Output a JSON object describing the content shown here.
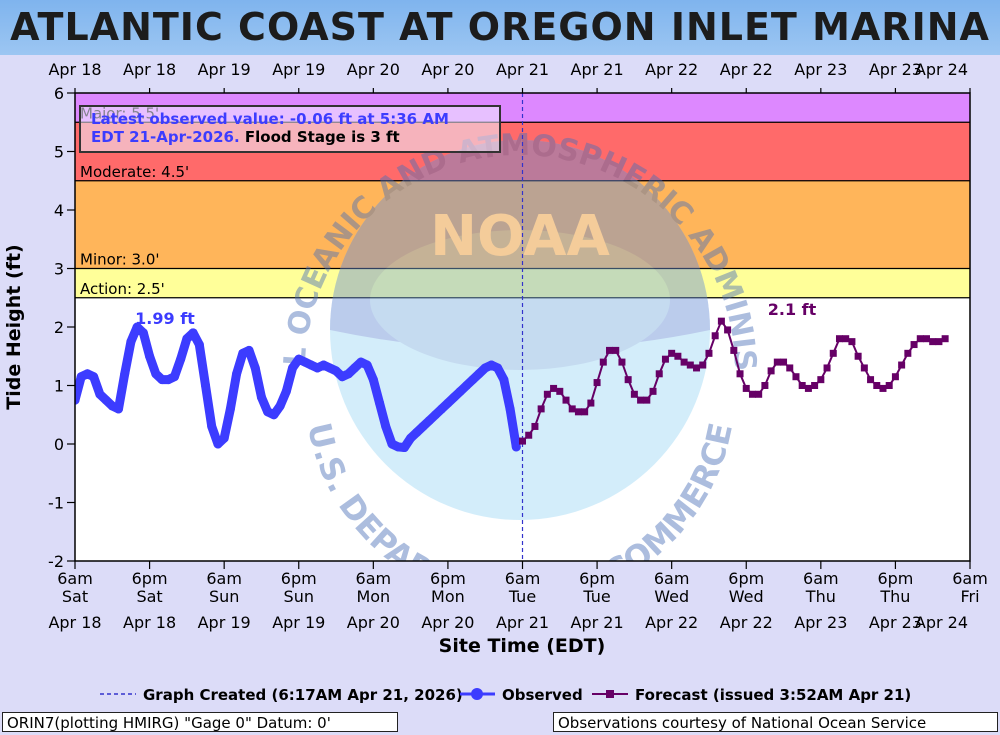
{
  "title": "ATLANTIC COAST AT OREGON INLET MARINA",
  "chart_data": {
    "type": "line",
    "xlabel": "Site Time (EDT)",
    "ylabel": "Tide Height (ft)",
    "ylim": [
      -2,
      6
    ],
    "xlim_hours": [
      0,
      144
    ],
    "yticks": [
      "-2",
      "-1",
      "0",
      "1",
      "2",
      "3",
      "4",
      "5",
      "6"
    ],
    "top_axis_labels": [
      "Apr 18",
      "Apr 18",
      "Apr 19",
      "Apr 19",
      "Apr 20",
      "Apr 20",
      "Apr 21",
      "Apr 21",
      "Apr 22",
      "Apr 22",
      "Apr 23",
      "Apr 23",
      "Apr 24"
    ],
    "bottom_time_labels": [
      "6am",
      "6pm",
      "6am",
      "6pm",
      "6am",
      "6pm",
      "6am",
      "6pm",
      "6am",
      "6pm",
      "6am",
      "6pm",
      "6am"
    ],
    "bottom_day_labels": [
      "Sat",
      "Sat",
      "Sun",
      "Sun",
      "Mon",
      "Mon",
      "Tue",
      "Tue",
      "Wed",
      "Wed",
      "Thu",
      "Thu",
      "Fri"
    ],
    "bottom_date_labels": [
      "Apr 18",
      "Apr 18",
      "Apr 19",
      "Apr 19",
      "Apr 20",
      "Apr 20",
      "Apr 21",
      "Apr 21",
      "Apr 22",
      "Apr 22",
      "Apr 23",
      "Apr 23",
      "Apr 24"
    ],
    "flood_bands": [
      {
        "label": "Major: 5.5'",
        "from": 5.5,
        "to": 6,
        "color": "#dd88ff"
      },
      {
        "label": "Moderate: 4.5'",
        "from": 4.5,
        "to": 5.5,
        "color": "#ff6a6a"
      },
      {
        "label": "Minor: 3.0'",
        "from": 3.0,
        "to": 4.5,
        "color": "#ffb55a"
      },
      {
        "label": "Action: 2.5'",
        "from": 2.5,
        "to": 3.0,
        "color": "#ffff99"
      }
    ],
    "info_box": {
      "line1": "Latest observed value: -0.06 ft at 5:36 AM",
      "line2_part1": "EDT 21-Apr-2026.",
      "line2_part2": "Flood Stage is 3 ft"
    },
    "annotations": {
      "observed_peak": "1.99 ft",
      "forecast_peak": "2.1 ft"
    },
    "created_hour": 72,
    "series": [
      {
        "name": "Observed",
        "color": "#3c3cff",
        "x": [
          0,
          1,
          2,
          3,
          4,
          5,
          6,
          7,
          8,
          9,
          10,
          11,
          12,
          13,
          14,
          15,
          16,
          17,
          18,
          19,
          20,
          21,
          22,
          23,
          24,
          25,
          26,
          27,
          28,
          29,
          30,
          31,
          32,
          33,
          34,
          35,
          36,
          37,
          38,
          39,
          40,
          41,
          42,
          43,
          44,
          45,
          46,
          47,
          48,
          49,
          50,
          51,
          52,
          53,
          54,
          55,
          56,
          57,
          58,
          59,
          60,
          61,
          62,
          63,
          64,
          65,
          66,
          67,
          68,
          69,
          70,
          71
        ],
        "y": [
          0.75,
          1.15,
          1.2,
          1.15,
          0.85,
          0.75,
          0.65,
          0.6,
          1.2,
          1.75,
          2.0,
          1.9,
          1.5,
          1.2,
          1.1,
          1.1,
          1.15,
          1.45,
          1.8,
          1.9,
          1.7,
          1.0,
          0.3,
          0.0,
          0.1,
          0.6,
          1.2,
          1.55,
          1.6,
          1.3,
          0.8,
          0.55,
          0.5,
          0.65,
          0.9,
          1.3,
          1.45,
          1.4,
          1.35,
          1.3,
          1.35,
          1.3,
          1.25,
          1.15,
          1.2,
          1.3,
          1.4,
          1.35,
          1.1,
          0.7,
          0.3,
          0.0,
          -0.05,
          -0.06,
          0.1,
          0.2,
          0.3,
          0.4,
          0.5,
          0.6,
          0.7,
          0.8,
          0.9,
          1.0,
          1.1,
          1.2,
          1.3,
          1.35,
          1.3,
          1.1,
          0.6,
          -0.05
        ]
      },
      {
        "name": "Forecast (issued 3:52AM Apr 21)",
        "color": "#660066",
        "x": [
          72,
          73,
          74,
          75,
          76,
          77,
          78,
          79,
          80,
          81,
          82,
          83,
          84,
          85,
          86,
          87,
          88,
          89,
          90,
          91,
          92,
          93,
          94,
          95,
          96,
          97,
          98,
          99,
          100,
          101,
          102,
          103,
          104,
          105,
          106,
          107,
          108,
          109,
          110,
          111,
          112,
          113,
          114,
          115,
          116,
          117,
          118,
          119,
          120,
          121,
          122,
          123,
          124,
          125,
          126,
          127,
          128,
          129,
          130,
          131,
          132,
          133,
          134,
          135,
          136,
          137,
          138,
          139,
          140
        ],
        "y": [
          0.05,
          0.15,
          0.3,
          0.6,
          0.85,
          0.95,
          0.9,
          0.75,
          0.6,
          0.55,
          0.55,
          0.7,
          1.05,
          1.4,
          1.6,
          1.6,
          1.4,
          1.1,
          0.85,
          0.75,
          0.75,
          0.9,
          1.2,
          1.45,
          1.55,
          1.5,
          1.4,
          1.35,
          1.3,
          1.35,
          1.55,
          1.85,
          2.1,
          1.95,
          1.6,
          1.2,
          0.95,
          0.85,
          0.85,
          1.0,
          1.25,
          1.4,
          1.4,
          1.3,
          1.15,
          1.0,
          0.95,
          1.0,
          1.1,
          1.3,
          1.55,
          1.8,
          1.8,
          1.75,
          1.5,
          1.3,
          1.1,
          1.0,
          0.95,
          1.0,
          1.15,
          1.35,
          1.55,
          1.7,
          1.8,
          1.8,
          1.75,
          1.75,
          1.8
        ]
      }
    ]
  },
  "legend": {
    "created": "Graph Created (6:17AM Apr 21, 2026)",
    "observed": "Observed",
    "forecast": "Forecast (issued 3:52AM Apr 21)"
  },
  "footer": {
    "left": "ORIN7(plotting HMIRG) \"Gage 0\" Datum: 0'",
    "right": "Observations courtesy of National Ocean Service"
  },
  "watermark": {
    "arc_top": "NATIONAL OCEANIC AND ATMOSPHERIC ADMINISTRATION",
    "arc_bottom": "U.S. DEPARTMENT OF COMMERCE",
    "logo": "NOAA"
  }
}
